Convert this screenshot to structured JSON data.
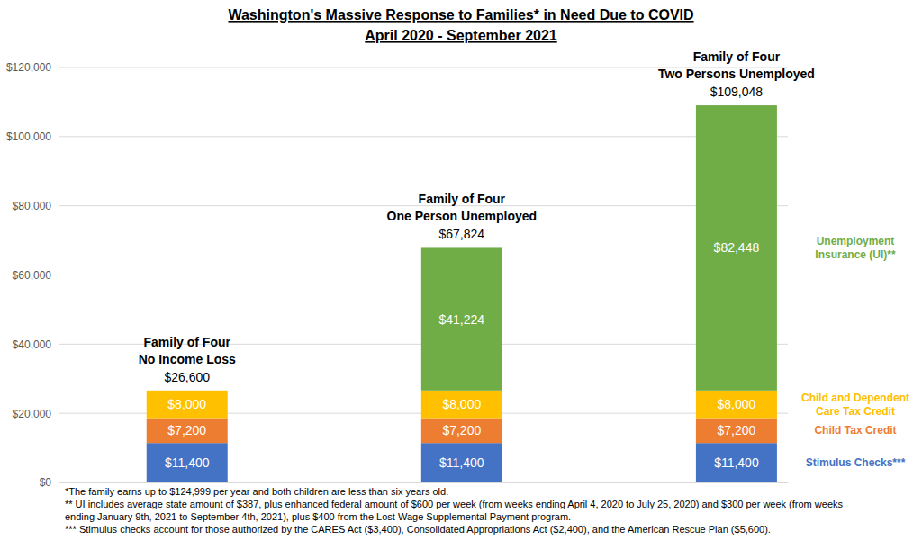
{
  "chart_data": {
    "type": "bar",
    "title": "Washington's Massive Response to Families* in Need Due to COVID",
    "subtitle": "April 2020 - September 2021",
    "categories": [
      [
        "Family of Four",
        "No Income Loss"
      ],
      [
        "Family of Four",
        "One Person Unemployed"
      ],
      [
        "Family of Four",
        "Two Persons Unemployed"
      ]
    ],
    "series": [
      {
        "name": "Stimulus Checks***",
        "color": "#4472c4",
        "values": [
          11400,
          11400,
          11400
        ],
        "value_labels": [
          "$11,400",
          "$11,400",
          "$11,400"
        ]
      },
      {
        "name": "Child Tax Credit",
        "color": "#ed7d31",
        "values": [
          7200,
          7200,
          7200
        ],
        "value_labels": [
          "$7,200",
          "$7,200",
          "$7,200"
        ]
      },
      {
        "name": "Child and Dependent Care Tax Credit",
        "color": "#ffc000",
        "values": [
          8000,
          8000,
          8000
        ],
        "value_labels": [
          "$8,000",
          "$8,000",
          "$8,000"
        ]
      },
      {
        "name": "Unemployment Insurance (UI)**",
        "color": "#70ad47",
        "values": [
          null,
          41224,
          82448
        ],
        "value_labels": [
          null,
          "$41,224",
          "$82,448"
        ]
      }
    ],
    "totals": [
      26600,
      67824,
      109048
    ],
    "total_labels": [
      "$26,600",
      "$67,824",
      "$109,048"
    ],
    "ylim": [
      0,
      120000
    ],
    "yticks": [
      {
        "value": 0,
        "label": "$0"
      },
      {
        "value": 20000,
        "label": "$20,000"
      },
      {
        "value": 40000,
        "label": "$40,000"
      },
      {
        "value": 60000,
        "label": "$60,000"
      },
      {
        "value": 80000,
        "label": "$80,000"
      },
      {
        "value": 100000,
        "label": "$100,000"
      },
      {
        "value": 120000,
        "label": "$120,000"
      }
    ],
    "grid": true,
    "stacked": true,
    "data_labels": true,
    "tick_labels": "y",
    "legend": "right",
    "notes": [
      "*The family earns up to $124,999 per year and both children are less than six years old.",
      "** UI includes average state amount of $387, plus enhanced federal amount of $600 per week (from weeks ending April 4, 2020 to July 25, 2020) and $300 per week (from weeks",
      "ending January 9th, 2021 to September 4th, 2021), plus $400 from the Lost Wage Supplemental Payment program.",
      "*** Stimulus checks account for those authorized by the CARES Act ($3,400), Consolidated Appropriations Act ($2,400), and the American Rescue Plan ($5,600)."
    ]
  }
}
